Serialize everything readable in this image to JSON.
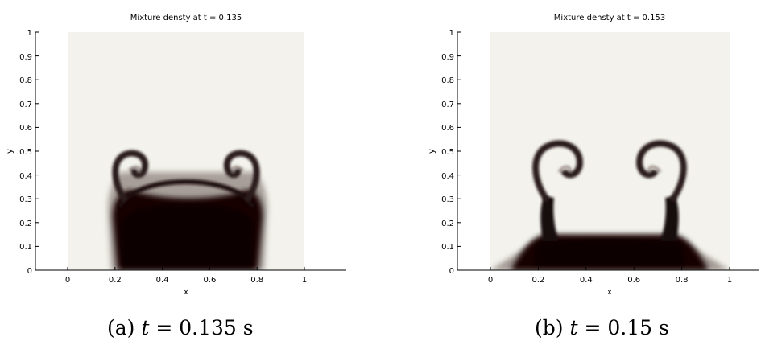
{
  "figures": [
    {
      "plot_title": "Mixture densty at t = 0.135",
      "xlabel": "x",
      "ylabel": "y",
      "caption_label": "(a)",
      "caption_var": "t",
      "caption_rest": "= 0.135 s"
    },
    {
      "plot_title": "Mixture densty at t = 0.153",
      "xlabel": "x",
      "ylabel": "y",
      "caption_label": "(b)",
      "caption_var": "t",
      "caption_rest": "= 0.15 s"
    }
  ],
  "colors": {
    "background_field": "#f3f2ec",
    "heavy_fluid": "#120506",
    "interface_mid": "#6b5a57"
  },
  "chart_data": [
    {
      "type": "heatmap",
      "title": "Mixture densty at t = 0.135",
      "xlabel": "x",
      "ylabel": "y",
      "xlim": [
        0,
        1
      ],
      "ylim": [
        0,
        1
      ],
      "x_tick_labels": [
        "0",
        "0.2",
        "0.4",
        "0.6",
        "0.8",
        "1"
      ],
      "y_tick_labels": [
        "0",
        "0.1",
        "0.2",
        "0.3",
        "0.4",
        "0.5",
        "0.6",
        "0.7",
        "0.8",
        "0.9",
        "1"
      ],
      "grid": false,
      "description_values": {
        "dense_region_x_range": [
          0.2,
          0.8
        ],
        "dense_region_top_y": 0.27,
        "mushroom_tip_y": 0.45,
        "left_roll_center": [
          0.3,
          0.41
        ],
        "right_roll_center": [
          0.7,
          0.41
        ]
      }
    },
    {
      "type": "heatmap",
      "title": "Mixture densty at t = 0.153",
      "xlabel": "x",
      "ylabel": "y",
      "xlim": [
        0,
        1
      ],
      "ylim": [
        0,
        1
      ],
      "x_tick_labels": [
        "0",
        "0.2",
        "0.4",
        "0.6",
        "0.8",
        "1"
      ],
      "y_tick_labels": [
        "0",
        "0.1",
        "0.2",
        "0.3",
        "0.4",
        "0.5",
        "0.6",
        "0.7",
        "0.8",
        "0.9",
        "1"
      ],
      "grid": false,
      "description_values": {
        "dense_region_x_range": [
          0.12,
          0.88
        ],
        "dense_region_top_y": 0.15,
        "mushroom_tip_y": 0.47,
        "left_roll_center": [
          0.25,
          0.38
        ],
        "right_roll_center": [
          0.75,
          0.38
        ]
      }
    }
  ]
}
